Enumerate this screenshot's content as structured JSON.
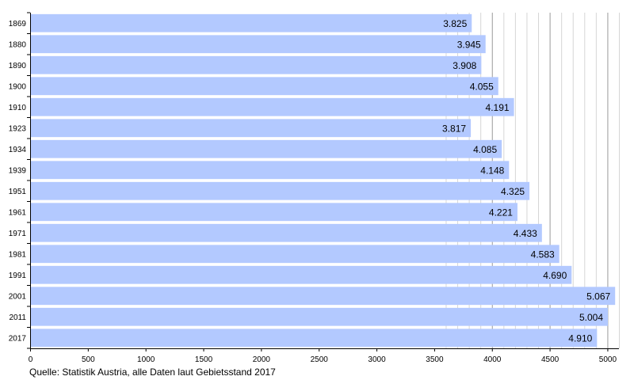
{
  "chart_data": {
    "type": "bar",
    "orientation": "horizontal",
    "categories": [
      "1869",
      "1880",
      "1890",
      "1900",
      "1910",
      "1923",
      "1934",
      "1939",
      "1951",
      "1961",
      "1971",
      "1981",
      "1991",
      "2001",
      "2011",
      "2017"
    ],
    "values": [
      3825,
      3945,
      3908,
      4055,
      4191,
      3817,
      4085,
      4148,
      4325,
      4221,
      4433,
      4583,
      4690,
      5067,
      5004,
      4910
    ],
    "value_labels": [
      "3.825",
      "3.945",
      "3.908",
      "4.055",
      "4.191",
      "3.817",
      "4.085",
      "4.148",
      "4.325",
      "4.221",
      "4.433",
      "4.583",
      "4.690",
      "5.067",
      "5.004",
      "4.910"
    ],
    "xlim": [
      0,
      5100
    ],
    "x_ticks": [
      0,
      500,
      1000,
      1500,
      2000,
      2500,
      3000,
      3500,
      4000,
      4500,
      5000
    ],
    "grid": true,
    "bar_color": "#b3c9ff",
    "grid_color": "#999999",
    "minor_grid_color": "#d6d6d6"
  },
  "source": "Quelle: Statistik Austria, alle Daten laut Gebietsstand 2017"
}
